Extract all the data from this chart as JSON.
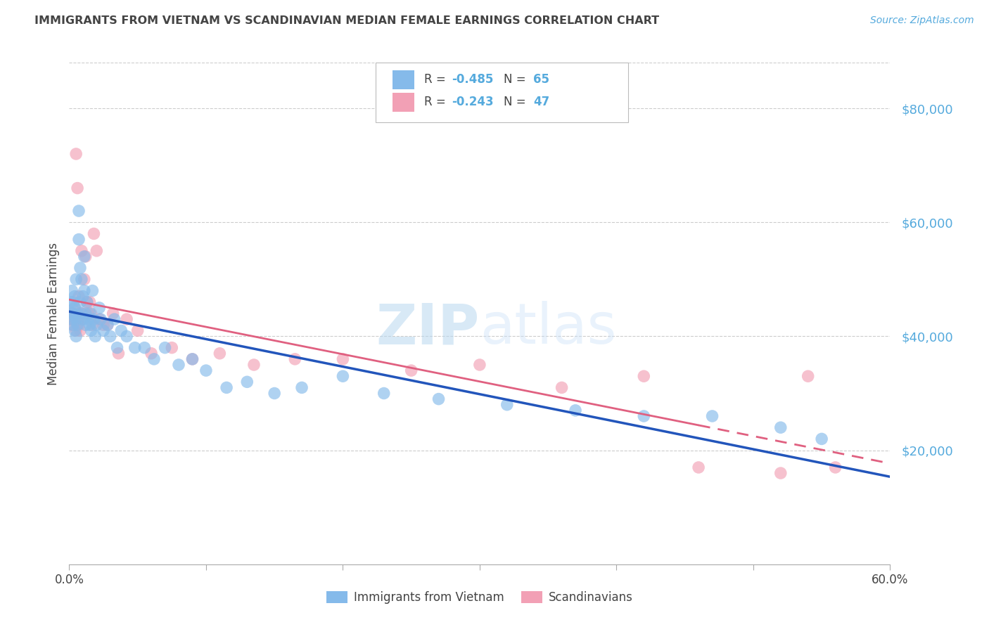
{
  "title": "IMMIGRANTS FROM VIETNAM VS SCANDINAVIAN MEDIAN FEMALE EARNINGS CORRELATION CHART",
  "source": "Source: ZipAtlas.com",
  "ylabel": "Median Female Earnings",
  "ytick_labels": [
    "$20,000",
    "$40,000",
    "$60,000",
    "$80,000"
  ],
  "ytick_values": [
    20000,
    40000,
    60000,
    80000
  ],
  "ymin": 0,
  "ymax": 88000,
  "xmin": 0.0,
  "xmax": 0.6,
  "legend_r1": "-0.485",
  "legend_n1": "65",
  "legend_r2": "-0.243",
  "legend_n2": "47",
  "watermark_zip": "ZIP",
  "watermark_atlas": "atlas",
  "series1_color": "#85BAEA",
  "series2_color": "#F2A0B5",
  "line1_color": "#2255BB",
  "line2_color": "#E06080",
  "background_color": "#FFFFFF",
  "grid_color": "#CCCCCC",
  "title_color": "#444444",
  "axis_label_color": "#55AADD",
  "legend_text_color": "#444444",
  "legend_r_color": "#55AADD",
  "series1_label": "Immigrants from Vietnam",
  "series2_label": "Scandinavians",
  "vietnam_x": [
    0.001,
    0.001,
    0.002,
    0.002,
    0.003,
    0.003,
    0.003,
    0.004,
    0.004,
    0.004,
    0.005,
    0.005,
    0.005,
    0.006,
    0.006,
    0.007,
    0.007,
    0.008,
    0.008,
    0.009,
    0.009,
    0.01,
    0.01,
    0.011,
    0.011,
    0.012,
    0.012,
    0.013,
    0.014,
    0.015,
    0.015,
    0.016,
    0.017,
    0.018,
    0.019,
    0.02,
    0.022,
    0.023,
    0.025,
    0.028,
    0.03,
    0.033,
    0.035,
    0.038,
    0.042,
    0.048,
    0.055,
    0.062,
    0.07,
    0.08,
    0.09,
    0.1,
    0.115,
    0.13,
    0.15,
    0.17,
    0.2,
    0.23,
    0.27,
    0.32,
    0.37,
    0.42,
    0.47,
    0.52,
    0.55
  ],
  "vietnam_y": [
    46000,
    44000,
    48000,
    43000,
    46000,
    44000,
    42000,
    47000,
    45000,
    41000,
    50000,
    43000,
    40000,
    44000,
    42000,
    62000,
    57000,
    52000,
    46000,
    50000,
    44000,
    47000,
    43000,
    54000,
    48000,
    44000,
    42000,
    46000,
    43000,
    44000,
    42000,
    41000,
    48000,
    43000,
    40000,
    42000,
    45000,
    43000,
    41000,
    42000,
    40000,
    43000,
    38000,
    41000,
    40000,
    38000,
    38000,
    36000,
    38000,
    35000,
    36000,
    34000,
    31000,
    32000,
    30000,
    31000,
    33000,
    30000,
    29000,
    28000,
    27000,
    26000,
    26000,
    24000,
    22000
  ],
  "scandinavian_x": [
    0.001,
    0.002,
    0.002,
    0.003,
    0.004,
    0.005,
    0.005,
    0.006,
    0.006,
    0.007,
    0.007,
    0.008,
    0.008,
    0.009,
    0.009,
    0.01,
    0.011,
    0.012,
    0.013,
    0.014,
    0.015,
    0.016,
    0.017,
    0.018,
    0.02,
    0.022,
    0.025,
    0.028,
    0.032,
    0.036,
    0.042,
    0.05,
    0.06,
    0.075,
    0.09,
    0.11,
    0.135,
    0.165,
    0.2,
    0.25,
    0.3,
    0.36,
    0.42,
    0.46,
    0.52,
    0.54,
    0.56
  ],
  "scandinavian_y": [
    43000,
    44000,
    42000,
    43000,
    45000,
    72000,
    41000,
    66000,
    43000,
    47000,
    42000,
    44000,
    41000,
    55000,
    43000,
    44000,
    50000,
    54000,
    46000,
    44000,
    46000,
    44000,
    42000,
    58000,
    55000,
    43000,
    42000,
    42000,
    44000,
    37000,
    43000,
    41000,
    37000,
    38000,
    36000,
    37000,
    35000,
    36000,
    36000,
    34000,
    35000,
    31000,
    33000,
    17000,
    16000,
    33000,
    17000
  ],
  "scan_line_solid_end": 0.46,
  "scan_line_dashed_start": 0.46
}
